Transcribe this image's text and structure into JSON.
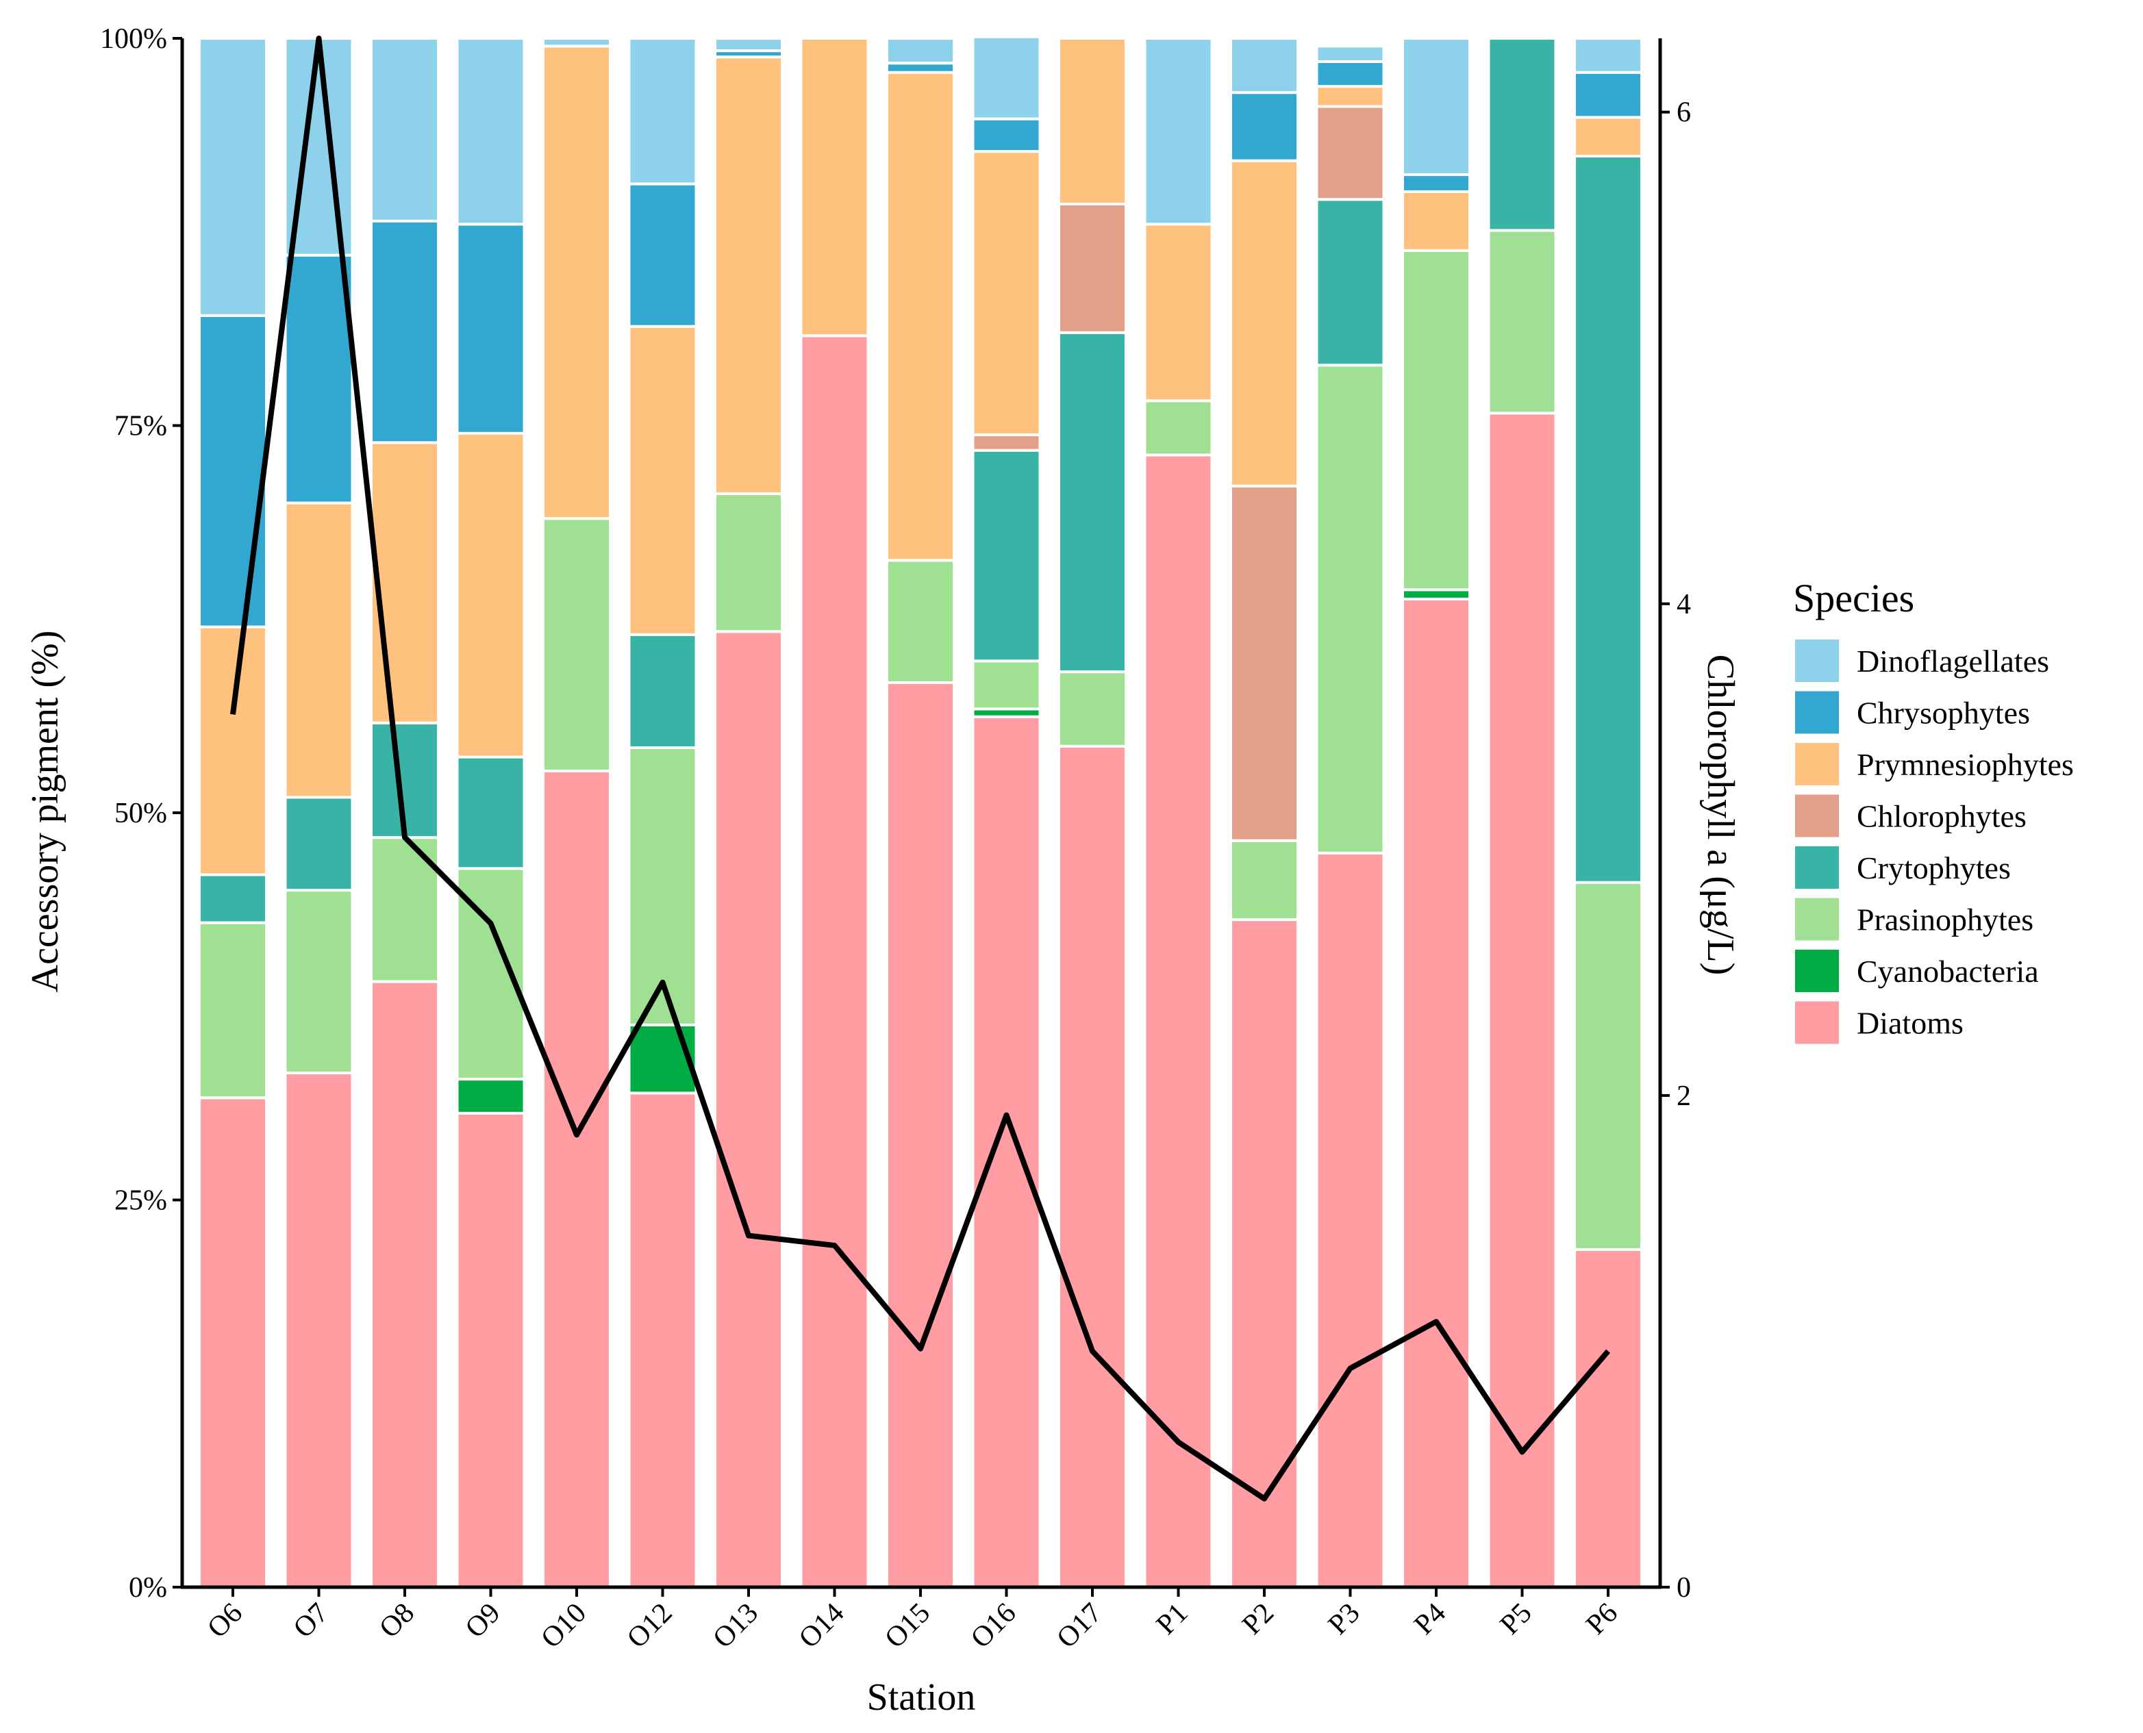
{
  "chart_data": {
    "type": "bar",
    "stacked": true,
    "xlabel": "Station",
    "ylabel": "Accessory pigment (%)",
    "y2label": "Chlorophyll a (μg/L)",
    "ylim": [
      0,
      100
    ],
    "y2lim": [
      0,
      6.3
    ],
    "yticks": [
      "0%",
      "25%",
      "50%",
      "75%",
      "100%"
    ],
    "y2ticks": [
      "0",
      "2",
      "4",
      "6"
    ],
    "categories": [
      "O6",
      "O7",
      "O8",
      "O9",
      "O10",
      "O12",
      "O13",
      "O14",
      "O15",
      "O16",
      "O17",
      "P1",
      "P2",
      "P3",
      "P4",
      "P5",
      "P6"
    ],
    "legend": {
      "title": "Species",
      "position": "right"
    },
    "series": [
      {
        "name": "Diatoms",
        "color": "#FF9DA2",
        "values": [
          31.6,
          33.2,
          39.1,
          30.6,
          52.7,
          31.9,
          61.7,
          80.8,
          58.4,
          56.2,
          54.3,
          73.1,
          43.1,
          47.4,
          63.8,
          75.8,
          21.8
        ]
      },
      {
        "name": "Cyanobacteria",
        "color": "#00AD45",
        "values": [
          0,
          0,
          0,
          2.2,
          0,
          4.4,
          0,
          0,
          0,
          0.5,
          0,
          0,
          0,
          0,
          0.6,
          0,
          0
        ]
      },
      {
        "name": "Prasinophytes",
        "color": "#9FE093",
        "values": [
          11.3,
          11.8,
          9.3,
          13.6,
          16.3,
          17.9,
          8.9,
          0,
          7.9,
          3.1,
          4.8,
          3.5,
          5.1,
          31.5,
          21.9,
          11.8,
          23.7
        ]
      },
      {
        "name": "Crytophytes",
        "color": "#3AB3A7",
        "values": [
          3.1,
          6.0,
          7.4,
          7.2,
          0,
          7.3,
          0,
          0,
          0,
          13.6,
          21.9,
          0,
          0,
          10.7,
          0,
          12.4,
          46.9
        ]
      },
      {
        "name": "Chlorophytes",
        "color": "#E29F89",
        "values": [
          0,
          0,
          0,
          0,
          0,
          0,
          0,
          0,
          0,
          1.0,
          8.3,
          0,
          22.9,
          6.0,
          0,
          0,
          0
        ]
      },
      {
        "name": "Prymnesiophytes",
        "color": "#FFC17E",
        "values": [
          16.0,
          19.0,
          18.1,
          20.9,
          30.5,
          19.9,
          28.2,
          19.2,
          31.5,
          18.3,
          10.7,
          11.4,
          21.0,
          1.3,
          3.8,
          0,
          2.5
        ]
      },
      {
        "name": "Chrysophytes",
        "color": "#32A7D0",
        "values": [
          20.1,
          16.0,
          14.3,
          13.5,
          0,
          9.2,
          0.4,
          0,
          0.6,
          2.1,
          0,
          0,
          4.4,
          1.6,
          1.1,
          0,
          2.9
        ]
      },
      {
        "name": "Dinoflagellates",
        "color": "#8DD2EA",
        "values": [
          17.9,
          14.0,
          11.8,
          12.0,
          0.5,
          9.4,
          0.8,
          0,
          1.6,
          5.3,
          0,
          12.0,
          3.5,
          1.0,
          8.8,
          0,
          2.2
        ]
      }
    ],
    "line": {
      "name": "Chlorophyll a",
      "axis": "right",
      "color": "#000000",
      "values": [
        3.55,
        6.3,
        3.05,
        2.7,
        1.84,
        2.46,
        1.43,
        1.39,
        0.97,
        1.92,
        0.96,
        0.59,
        0.36,
        0.89,
        1.08,
        0.55,
        0.96
      ]
    }
  }
}
